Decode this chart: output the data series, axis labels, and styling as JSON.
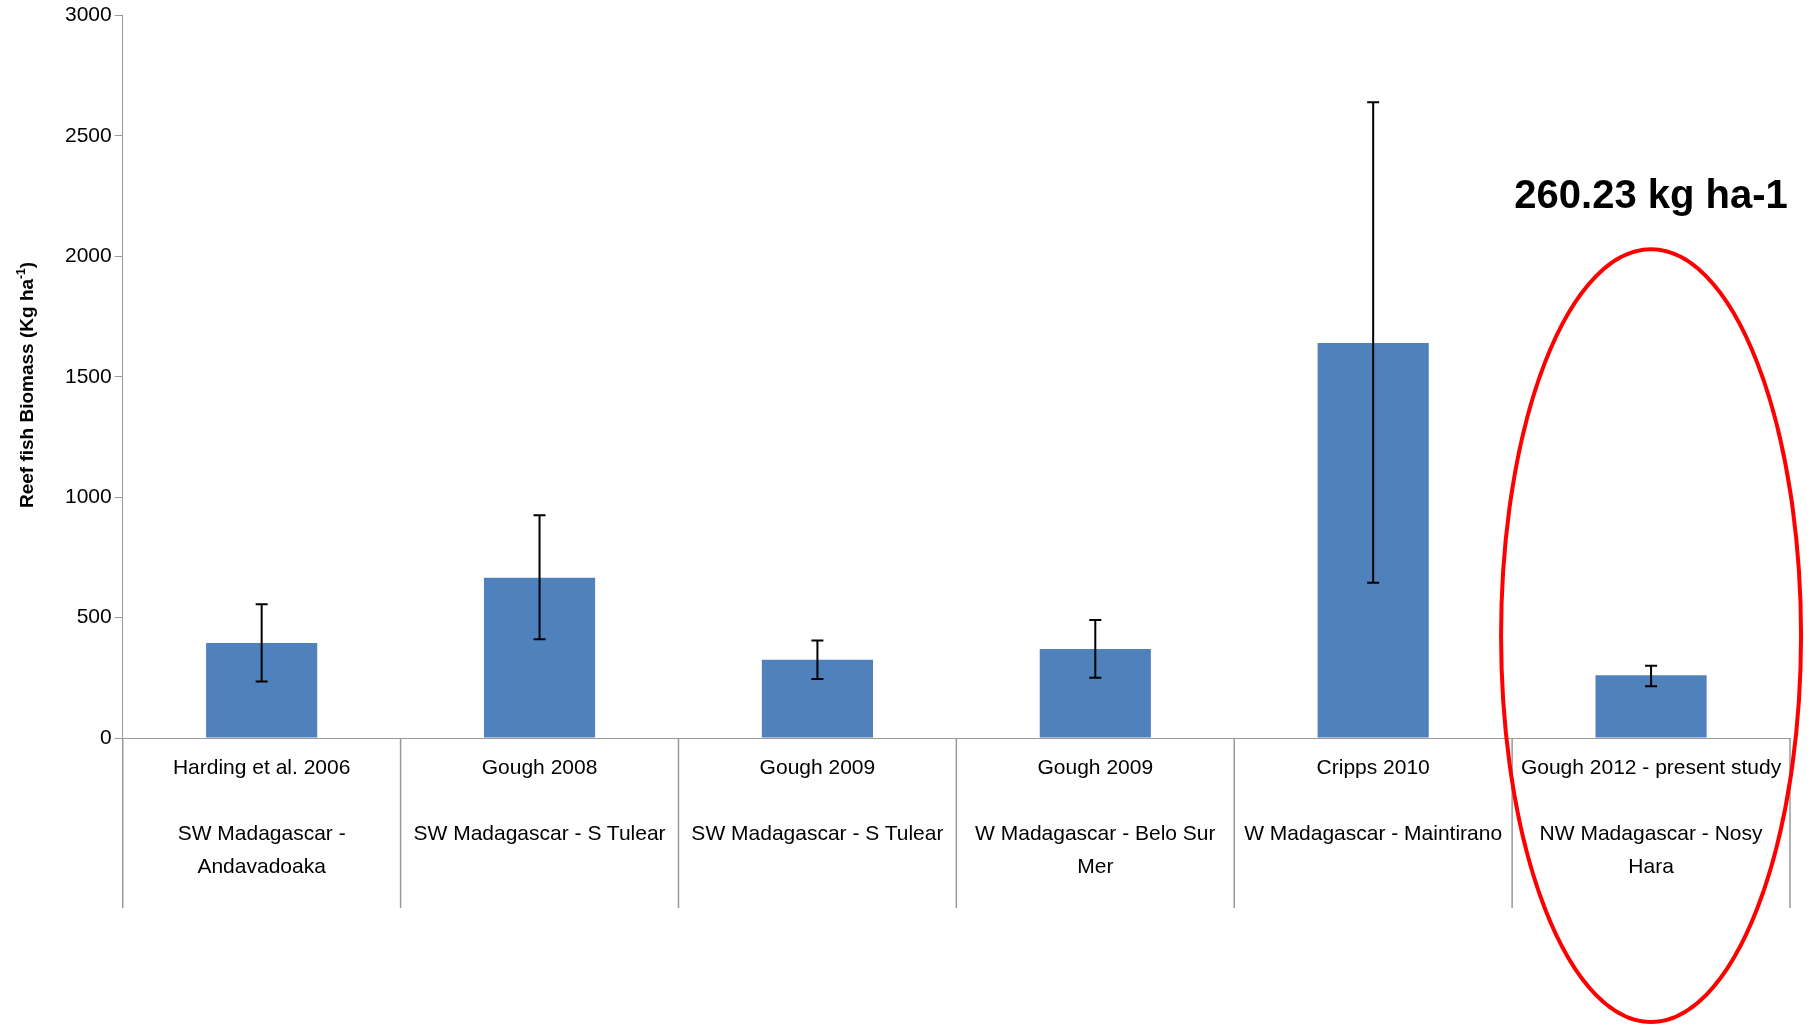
{
  "chart_data": {
    "type": "bar",
    "ylabel": "Reef fish Biomass (Kg ha$^{-1}$)",
    "categories": [
      "Harding et al. 2006\nSW Madagascar - Andavadoaka",
      "Gough 2008\nSW Madagascar - S Tulear",
      "Gough 2009\nSW Madagascar - S Tulear",
      "Gough 2009\nW Madagascar - Belo Sur Mer",
      "Cripps 2010\nW Madagascar - Maintirano",
      "Gough 2012 - present study\nNW Madagascar - Nosy Hara"
    ],
    "values": [
      395,
      665,
      325,
      370,
      1640,
      260.23
    ],
    "errors": [
      [
        235,
        555
      ],
      [
        410,
        925
      ],
      [
        245,
        405
      ],
      [
        250,
        490
      ],
      [
        645,
        2640
      ],
      [
        215,
        300
      ]
    ],
    "color": "#4f81bd",
    "ylim": [
      0,
      3000
    ],
    "yticks": [
      0,
      500,
      1000,
      1500,
      2000,
      2500,
      3000
    ],
    "grid": false,
    "legend": false,
    "annotations": [
      "260.23 kg ha-1"
    ]
  }
}
